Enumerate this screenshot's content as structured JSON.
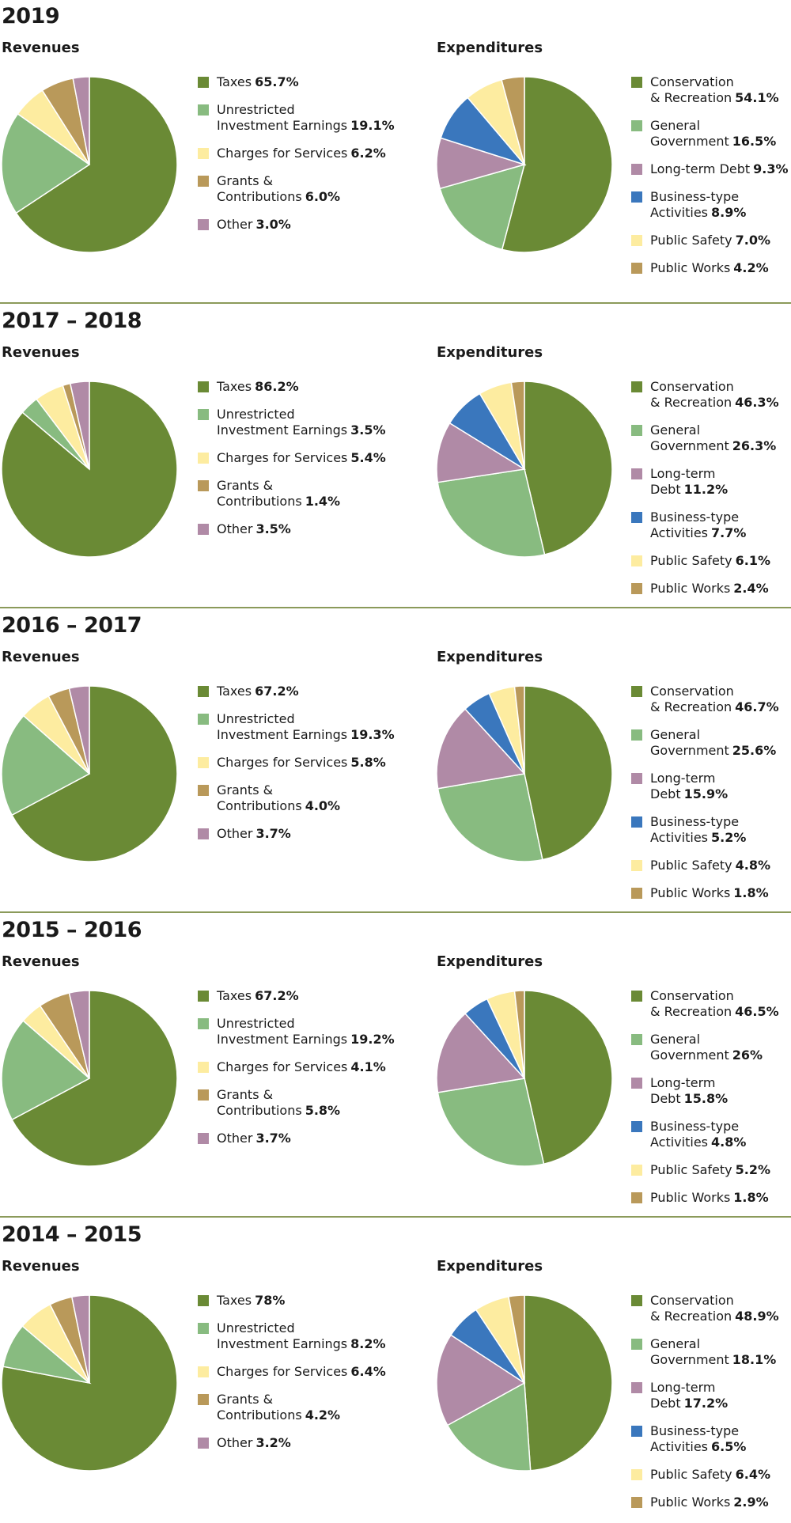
{
  "colors": {
    "dark_green": "#6a8a35",
    "light_green": "#88bb80",
    "light_yellow": "#fdeca0",
    "tan": "#b9995a",
    "mauve": "#b08aa6",
    "blue": "#3a77bd",
    "divider": "#8b9a5a"
  },
  "chart_data": [
    {
      "type": "pie",
      "title": "2019",
      "subtitle": "Revenues",
      "slices": [
        {
          "label": [
            "Taxes"
          ],
          "value": 65.7,
          "pct": "65.7%",
          "color": "#6a8a35"
        },
        {
          "label": [
            "Unrestricted",
            "Investment Earnings"
          ],
          "value": 19.1,
          "pct": "19.1%",
          "color": "#88bb80"
        },
        {
          "label": [
            "Charges for Services"
          ],
          "value": 6.2,
          "pct": "6.2%",
          "color": "#fdeca0"
        },
        {
          "label": [
            "Grants &",
            "Contributions"
          ],
          "value": 6.0,
          "pct": "6.0%",
          "color": "#b9995a"
        },
        {
          "label": [
            "Other"
          ],
          "value": 3.0,
          "pct": "3.0%",
          "color": "#b08aa6"
        }
      ]
    },
    {
      "type": "pie",
      "title": "2019",
      "subtitle": "Expenditures",
      "slices": [
        {
          "label": [
            "Conservation",
            "& Recreation"
          ],
          "value": 54.1,
          "pct": "54.1%",
          "color": "#6a8a35"
        },
        {
          "label": [
            "General",
            "Government"
          ],
          "value": 16.5,
          "pct": "16.5%",
          "color": "#88bb80"
        },
        {
          "label": [
            "Long-term Debt"
          ],
          "value": 9.3,
          "pct": "9.3%",
          "color": "#b08aa6"
        },
        {
          "label": [
            "Business-type",
            "Activities"
          ],
          "value": 8.9,
          "pct": "8.9%",
          "color": "#3a77bd"
        },
        {
          "label": [
            "Public Safety"
          ],
          "value": 7.0,
          "pct": "7.0%",
          "color": "#fdeca0"
        },
        {
          "label": [
            "Public Works"
          ],
          "value": 4.2,
          "pct": "4.2%",
          "color": "#b9995a"
        }
      ]
    },
    {
      "type": "pie",
      "title": "2017 – 2018",
      "subtitle": "Revenues",
      "slices": [
        {
          "label": [
            "Taxes"
          ],
          "value": 86.2,
          "pct": "86.2%",
          "color": "#6a8a35"
        },
        {
          "label": [
            "Unrestricted",
            "Investment Earnings"
          ],
          "value": 3.5,
          "pct": "3.5%",
          "color": "#88bb80"
        },
        {
          "label": [
            "Charges for Services"
          ],
          "value": 5.4,
          "pct": "5.4%",
          "color": "#fdeca0"
        },
        {
          "label": [
            "Grants &",
            "Contributions"
          ],
          "value": 1.4,
          "pct": "1.4%",
          "color": "#b9995a"
        },
        {
          "label": [
            "Other"
          ],
          "value": 3.5,
          "pct": "3.5%",
          "color": "#b08aa6"
        }
      ]
    },
    {
      "type": "pie",
      "title": "2017 – 2018",
      "subtitle": "Expenditures",
      "slices": [
        {
          "label": [
            "Conservation",
            "& Recreation"
          ],
          "value": 46.3,
          "pct": "46.3%",
          "color": "#6a8a35"
        },
        {
          "label": [
            "General",
            "Government"
          ],
          "value": 26.3,
          "pct": "26.3%",
          "color": "#88bb80"
        },
        {
          "label": [
            "Long-term Debt"
          ],
          "value": 11.2,
          "pct": "11.2%",
          "color": "#b08aa6"
        },
        {
          "label": [
            "Business-type",
            "Activities"
          ],
          "value": 7.7,
          "pct": "7.7%",
          "color": "#3a77bd"
        },
        {
          "label": [
            "Public Safety"
          ],
          "value": 6.1,
          "pct": "6.1%",
          "color": "#fdeca0"
        },
        {
          "label": [
            "Public Works"
          ],
          "value": 2.4,
          "pct": "2.4%",
          "color": "#b9995a"
        }
      ]
    },
    {
      "type": "pie",
      "title": "2016 – 2017",
      "subtitle": "Revenues",
      "slices": [
        {
          "label": [
            "Taxes"
          ],
          "value": 67.2,
          "pct": "67.2%",
          "color": "#6a8a35"
        },
        {
          "label": [
            "Unrestricted",
            "Investment Earnings"
          ],
          "value": 19.3,
          "pct": "19.3%",
          "color": "#88bb80"
        },
        {
          "label": [
            "Charges for Services"
          ],
          "value": 5.8,
          "pct": "5.8%",
          "color": "#fdeca0"
        },
        {
          "label": [
            "Grants &",
            "Contributions"
          ],
          "value": 4.0,
          "pct": "4.0%",
          "color": "#b9995a"
        },
        {
          "label": [
            "Other"
          ],
          "value": 3.7,
          "pct": "3.7%",
          "color": "#b08aa6"
        }
      ]
    },
    {
      "type": "pie",
      "title": "2016 – 2017",
      "subtitle": "Expenditures",
      "slices": [
        {
          "label": [
            "Conservation",
            "& Recreation"
          ],
          "value": 46.7,
          "pct": "46.7%",
          "color": "#6a8a35"
        },
        {
          "label": [
            "General",
            "Government"
          ],
          "value": 25.6,
          "pct": "25.6%",
          "color": "#88bb80"
        },
        {
          "label": [
            "Long-term Debt"
          ],
          "value": 15.9,
          "pct": "15.9%",
          "color": "#b08aa6"
        },
        {
          "label": [
            "Business-type",
            "Activities"
          ],
          "value": 5.2,
          "pct": "5.2%",
          "color": "#3a77bd"
        },
        {
          "label": [
            "Public Safety"
          ],
          "value": 4.8,
          "pct": "4.8%",
          "color": "#fdeca0"
        },
        {
          "label": [
            "Public Works"
          ],
          "value": 1.8,
          "pct": "1.8%",
          "color": "#b9995a"
        }
      ]
    },
    {
      "type": "pie",
      "title": "2015 – 2016",
      "subtitle": "Revenues",
      "slices": [
        {
          "label": [
            "Taxes"
          ],
          "value": 67.2,
          "pct": "67.2%",
          "color": "#6a8a35"
        },
        {
          "label": [
            "Unrestricted",
            "Investment Earnings"
          ],
          "value": 19.2,
          "pct": "19.2%",
          "color": "#88bb80"
        },
        {
          "label": [
            "Charges for Services"
          ],
          "value": 4.1,
          "pct": "4.1%",
          "color": "#fdeca0"
        },
        {
          "label": [
            "Grants &",
            "Contributions"
          ],
          "value": 5.8,
          "pct": "5.8%",
          "color": "#b9995a"
        },
        {
          "label": [
            "Other"
          ],
          "value": 3.7,
          "pct": "3.7%",
          "color": "#b08aa6"
        }
      ]
    },
    {
      "type": "pie",
      "title": "2015 – 2016",
      "subtitle": "Expenditures",
      "slices": [
        {
          "label": [
            "Conservation",
            "& Recreation"
          ],
          "value": 46.5,
          "pct": "46.5%",
          "color": "#6a8a35"
        },
        {
          "label": [
            "General",
            "Government"
          ],
          "value": 26,
          "pct": "26%",
          "color": "#88bb80"
        },
        {
          "label": [
            "Long-term Debt"
          ],
          "value": 15.8,
          "pct": "15.8%",
          "color": "#b08aa6"
        },
        {
          "label": [
            "Business-type",
            "Activities"
          ],
          "value": 4.8,
          "pct": "4.8%",
          "color": "#3a77bd"
        },
        {
          "label": [
            "Public Safety"
          ],
          "value": 5.2,
          "pct": "5.2%",
          "color": "#fdeca0"
        },
        {
          "label": [
            "Public Works"
          ],
          "value": 1.8,
          "pct": "1.8%",
          "color": "#b9995a"
        }
      ]
    },
    {
      "type": "pie",
      "title": "2014 – 2015",
      "subtitle": "Revenues",
      "slices": [
        {
          "label": [
            "Taxes"
          ],
          "value": 78,
          "pct": "78%",
          "color": "#6a8a35"
        },
        {
          "label": [
            "Unrestricted",
            "Investment Earnings"
          ],
          "value": 8.2,
          "pct": "8.2%",
          "color": "#88bb80"
        },
        {
          "label": [
            "Charges for Services"
          ],
          "value": 6.4,
          "pct": "6.4%",
          "color": "#fdeca0"
        },
        {
          "label": [
            "Grants &",
            "Contributions"
          ],
          "value": 4.2,
          "pct": "4.2%",
          "color": "#b9995a"
        },
        {
          "label": [
            "Other"
          ],
          "value": 3.2,
          "pct": "3.2%",
          "color": "#b08aa6"
        }
      ]
    },
    {
      "type": "pie",
      "title": "2014 – 2015",
      "subtitle": "Expenditures",
      "slices": [
        {
          "label": [
            "Conservation",
            "& Recreation"
          ],
          "value": 48.9,
          "pct": "48.9%",
          "color": "#6a8a35"
        },
        {
          "label": [
            "General",
            "Government"
          ],
          "value": 18.1,
          "pct": "18.1%",
          "color": "#88bb80"
        },
        {
          "label": [
            "Long-term Debt"
          ],
          "value": 17.2,
          "pct": "17.2%",
          "color": "#b08aa6"
        },
        {
          "label": [
            "Business-type",
            "Activities"
          ],
          "value": 6.5,
          "pct": "6.5%",
          "color": "#3a77bd"
        },
        {
          "label": [
            "Public Safety"
          ],
          "value": 6.4,
          "pct": "6.4%",
          "color": "#fdeca0"
        },
        {
          "label": [
            "Public Works"
          ],
          "value": 2.9,
          "pct": "2.9%",
          "color": "#b9995a"
        }
      ]
    }
  ]
}
